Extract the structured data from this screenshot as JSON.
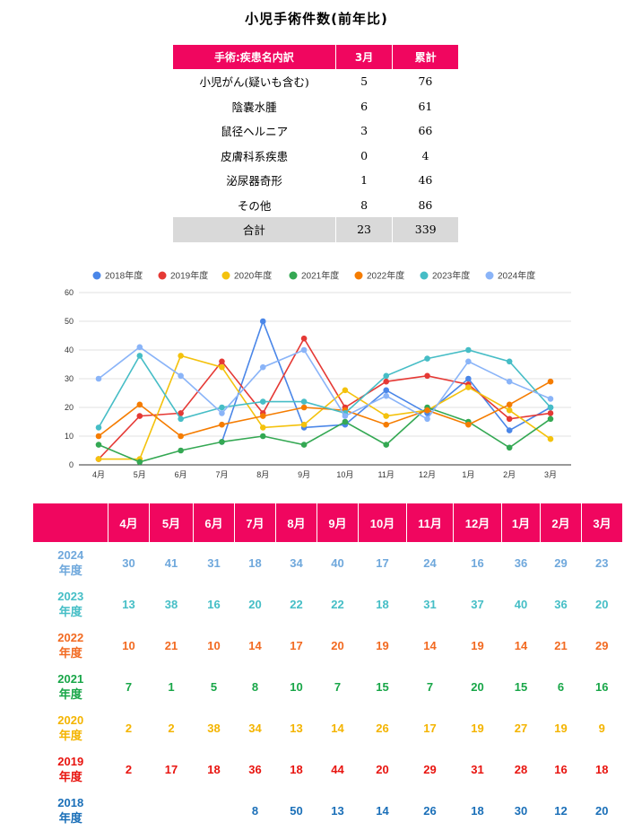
{
  "title": "小児手術件数(前年比)",
  "summary": {
    "headers": [
      "手術:疾患名内訳",
      "3月",
      "累計"
    ],
    "rows": [
      [
        "小児がん(疑いも含む)",
        "5",
        "76"
      ],
      [
        "陰嚢水腫",
        "6",
        "61"
      ],
      [
        "鼠径ヘルニア",
        "3",
        "66"
      ],
      [
        "皮膚科系疾患",
        "0",
        "4"
      ],
      [
        "泌尿器奇形",
        "1",
        "46"
      ],
      [
        "その他",
        "8",
        "86"
      ]
    ],
    "total": [
      "合計",
      "23",
      "339"
    ]
  },
  "chart_data": {
    "type": "line",
    "categories": [
      "4月",
      "5月",
      "6月",
      "7月",
      "8月",
      "9月",
      "10月",
      "11月",
      "12月",
      "1月",
      "2月",
      "3月"
    ],
    "ylim": [
      0,
      60
    ],
    "yticks": [
      0,
      10,
      20,
      30,
      40,
      50,
      60
    ],
    "grid": true,
    "legend": "top",
    "series": [
      {
        "name": "2018年度",
        "color": "#4a86e8",
        "values": [
          null,
          null,
          null,
          8,
          50,
          13,
          14,
          26,
          18,
          30,
          12,
          20
        ]
      },
      {
        "name": "2019年度",
        "color": "#e53935",
        "values": [
          2,
          17,
          18,
          36,
          18,
          44,
          20,
          29,
          31,
          28,
          16,
          18
        ]
      },
      {
        "name": "2020年度",
        "color": "#f4c20d",
        "values": [
          2,
          2,
          38,
          34,
          13,
          14,
          26,
          17,
          19,
          27,
          19,
          9
        ]
      },
      {
        "name": "2021年度",
        "color": "#34a853",
        "values": [
          7,
          1,
          5,
          8,
          10,
          7,
          15,
          7,
          20,
          15,
          6,
          16
        ]
      },
      {
        "name": "2022年度",
        "color": "#f57c00",
        "values": [
          10,
          21,
          10,
          14,
          17,
          20,
          19,
          14,
          19,
          14,
          21,
          29
        ]
      },
      {
        "name": "2023年度",
        "color": "#46bdc6",
        "values": [
          13,
          38,
          16,
          20,
          22,
          22,
          18,
          31,
          37,
          40,
          36,
          20
        ]
      },
      {
        "name": "2024年度",
        "color": "#8ab4f8",
        "values": [
          30,
          41,
          31,
          18,
          34,
          40,
          17,
          24,
          16,
          36,
          29,
          23
        ]
      }
    ]
  },
  "table": {
    "months": [
      "4月",
      "5月",
      "6月",
      "7月",
      "8月",
      "9月",
      "10月",
      "11月",
      "12月",
      "1月",
      "2月",
      "3月"
    ],
    "rows": [
      {
        "year": "2024",
        "suffix": "年度",
        "color": "#6fa8dc",
        "values": [
          "30",
          "41",
          "31",
          "18",
          "34",
          "40",
          "17",
          "24",
          "16",
          "36",
          "29",
          "23"
        ]
      },
      {
        "year": "2023",
        "suffix": "年度",
        "color": "#45bec6",
        "values": [
          "13",
          "38",
          "16",
          "20",
          "22",
          "22",
          "18",
          "31",
          "37",
          "40",
          "36",
          "20"
        ]
      },
      {
        "year": "2022",
        "suffix": "年度",
        "color": "#f26a21",
        "values": [
          "10",
          "21",
          "10",
          "14",
          "17",
          "20",
          "19",
          "14",
          "19",
          "14",
          "21",
          "29"
        ]
      },
      {
        "year": "2021",
        "suffix": "年度",
        "color": "#18a648",
        "values": [
          "7",
          "1",
          "5",
          "8",
          "10",
          "7",
          "15",
          "7",
          "20",
          "15",
          "6",
          "16"
        ]
      },
      {
        "year": "2020",
        "suffix": "年度",
        "color": "#f4b400",
        "values": [
          "2",
          "2",
          "38",
          "34",
          "13",
          "14",
          "26",
          "17",
          "19",
          "27",
          "19",
          "9"
        ]
      },
      {
        "year": "2019",
        "suffix": "年度",
        "color": "#e8140f",
        "values": [
          "2",
          "17",
          "18",
          "36",
          "18",
          "44",
          "20",
          "29",
          "31",
          "28",
          "16",
          "18"
        ]
      },
      {
        "year": "2018",
        "suffix": "年度",
        "color": "#1a6fb8",
        "values": [
          "",
          "",
          "",
          "8",
          "50",
          "13",
          "14",
          "26",
          "18",
          "30",
          "12",
          "20"
        ]
      }
    ]
  }
}
